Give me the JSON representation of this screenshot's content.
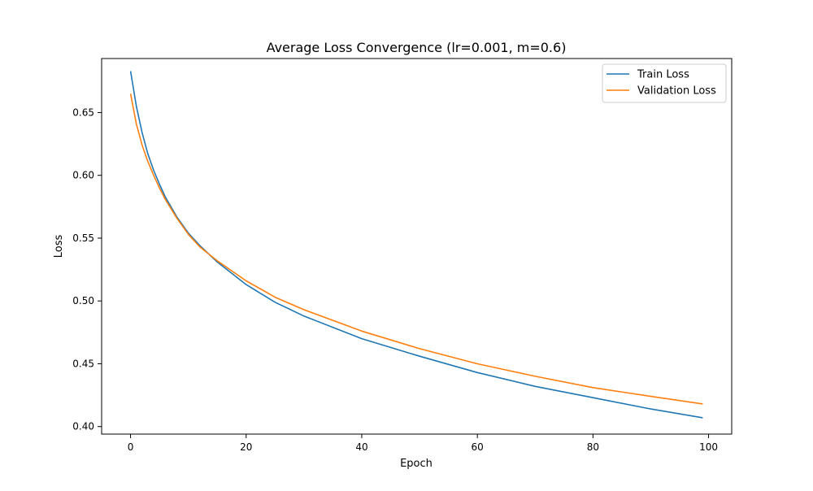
{
  "chart_data": {
    "type": "line",
    "title": "Average Loss Convergence (lr=0.001, m=0.6)",
    "xlabel": "Epoch",
    "ylabel": "Loss",
    "xlim": [
      -5,
      104
    ],
    "ylim": [
      0.394,
      0.693
    ],
    "xticks": [
      0,
      20,
      40,
      60,
      80,
      100
    ],
    "xtick_labels": [
      "0",
      "20",
      "40",
      "60",
      "80",
      "100"
    ],
    "yticks": [
      0.4,
      0.45,
      0.5,
      0.55,
      0.6,
      0.65
    ],
    "ytick_labels": [
      "0.40",
      "0.45",
      "0.50",
      "0.55",
      "0.60",
      "0.65"
    ],
    "grid": false,
    "legend": "top-right",
    "x": [
      0,
      1,
      2,
      3,
      4,
      5,
      6,
      8,
      10,
      12,
      15,
      20,
      25,
      30,
      40,
      50,
      60,
      70,
      80,
      90,
      99
    ],
    "series": [
      {
        "name": "Train Loss",
        "color": "#1f77b4",
        "values": [
          0.683,
          0.655,
          0.634,
          0.617,
          0.604,
          0.593,
          0.583,
          0.567,
          0.554,
          0.544,
          0.531,
          0.513,
          0.499,
          0.488,
          0.47,
          0.456,
          0.443,
          0.432,
          0.423,
          0.414,
          0.407
        ]
      },
      {
        "name": "Validation Loss",
        "color": "#ff7f0e",
        "values": [
          0.665,
          0.641,
          0.624,
          0.611,
          0.6,
          0.59,
          0.581,
          0.566,
          0.553,
          0.543,
          0.532,
          0.516,
          0.503,
          0.493,
          0.476,
          0.462,
          0.45,
          0.44,
          0.431,
          0.424,
          0.418
        ]
      }
    ]
  }
}
